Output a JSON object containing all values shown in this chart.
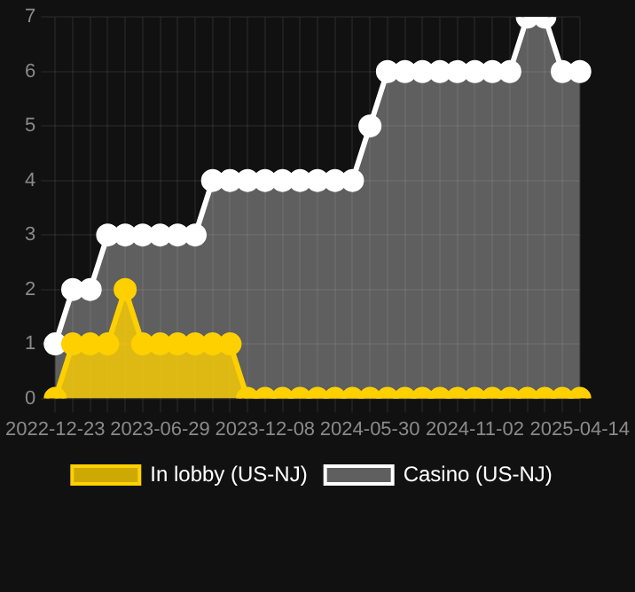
{
  "chart_data": {
    "type": "area",
    "categories": [
      "2022-12-23",
      null,
      null,
      null,
      null,
      null,
      "2023-06-29",
      null,
      null,
      null,
      null,
      null,
      "2023-12-08",
      null,
      null,
      null,
      null,
      null,
      "2024-05-30",
      null,
      null,
      null,
      null,
      null,
      "2024-11-02",
      null,
      null,
      null,
      null,
      null,
      "2025-04-14"
    ],
    "series": [
      {
        "name": "In lobby (US-NJ)",
        "color": "#ffd000",
        "values": [
          0,
          1,
          1,
          1,
          2,
          1,
          1,
          1,
          1,
          1,
          1,
          0,
          0,
          0,
          0,
          0,
          0,
          0,
          0,
          0,
          0,
          0,
          0,
          0,
          0,
          0,
          0,
          0,
          0,
          0,
          0
        ]
      },
      {
        "name": "Casino (US-NJ)",
        "color": "#ffffff",
        "values": [
          1,
          2,
          2,
          3,
          3,
          3,
          3,
          3,
          3,
          4,
          4,
          4,
          4,
          4,
          4,
          4,
          4,
          4,
          5,
          6,
          6,
          6,
          6,
          6,
          6,
          6,
          6,
          7,
          7,
          6,
          6
        ]
      }
    ],
    "ylim": [
      0,
      7
    ],
    "yticks": [
      0,
      1,
      2,
      3,
      4,
      5,
      6,
      7
    ],
    "grid": true,
    "legend": "bottom",
    "marker": "circle"
  }
}
